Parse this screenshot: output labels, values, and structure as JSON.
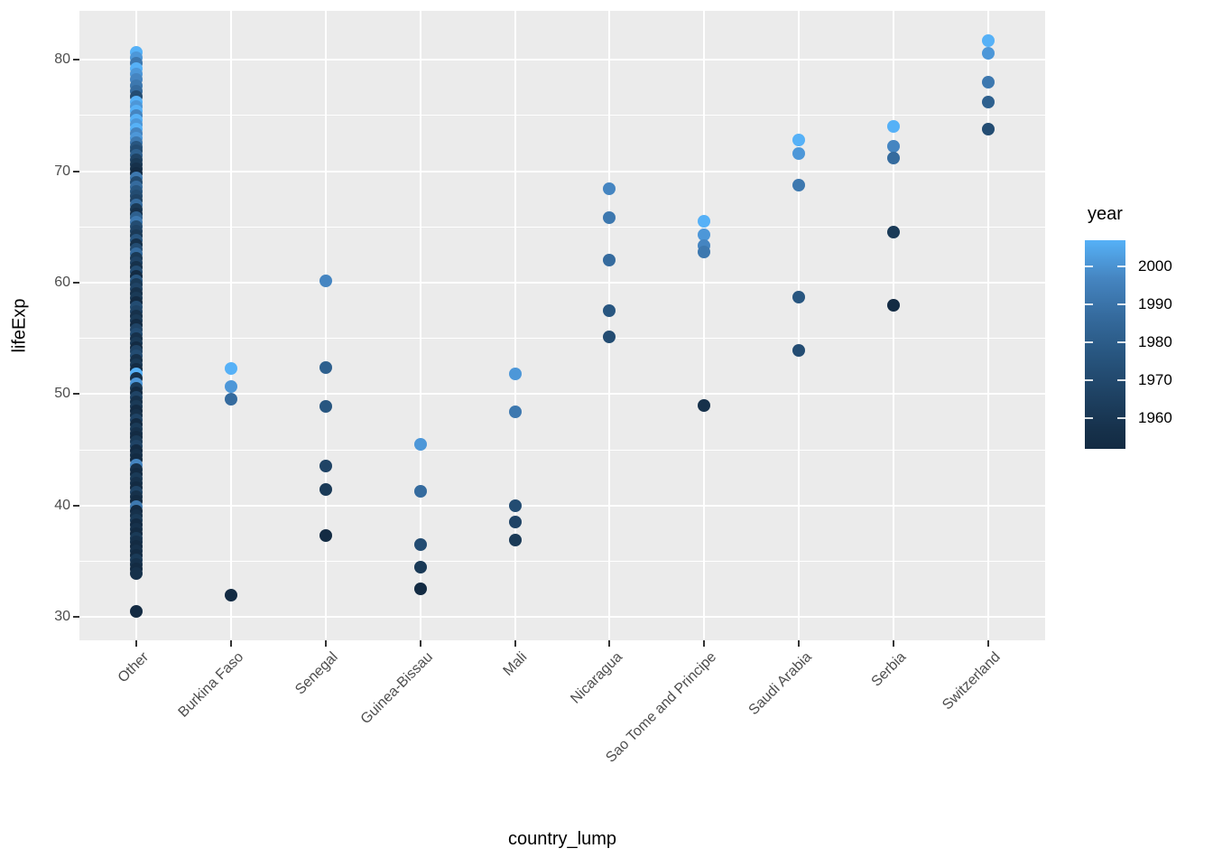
{
  "chart_data": {
    "type": "scatter",
    "title": "",
    "xlabel": "country_lump",
    "ylabel": "lifeExp",
    "x_categories": [
      "Other",
      "Burkina Faso",
      "Senegal",
      "Guinea-Bissau",
      "Mali",
      "Nicaragua",
      "Sao Tome and Principe",
      "Saudi Arabia",
      "Serbia",
      "Switzerland"
    ],
    "y_ticks": [
      30,
      40,
      50,
      60,
      70,
      80
    ],
    "y_minor_ticks": [
      35,
      45,
      55,
      65,
      75
    ],
    "ylim": [
      27.9,
      84.4
    ],
    "grid": "on",
    "colors": {
      "panel_background": "#EBEBEB",
      "gridline": "#FFFFFF",
      "tick_label": "#4D4D4D",
      "axis_title": "#000000",
      "gradient_low": "#132B43",
      "gradient_high": "#56B1F7"
    },
    "year_colors": {
      "1952": "#132b43",
      "1957": "#16314b",
      "1962": "#1a3a57",
      "1967": "#1f4365",
      "1972": "#234c72",
      "1977": "#285680",
      "1982": "#2e608e",
      "1987": "#356b9e",
      "1992": "#3d78af",
      "1997": "#4585c1",
      "2002": "#4d97d8",
      "2007": "#56b1f7"
    },
    "legend": {
      "title": "year",
      "position": "right",
      "min_year": 1952,
      "max_year": 2007,
      "tick_years": [
        2000,
        1990,
        1980,
        1970,
        1960
      ],
      "tick_labels": [
        "2000",
        "1990",
        "1980",
        "1970",
        "1960"
      ]
    },
    "series": [
      {
        "country": "Other",
        "points": [
          [
            80.7,
            2007
          ],
          [
            80.2,
            2002
          ],
          [
            79.7,
            1992
          ],
          [
            79.2,
            2007
          ],
          [
            78.7,
            2002
          ],
          [
            78.2,
            1997
          ],
          [
            77.7,
            1992
          ],
          [
            77.2,
            1987
          ],
          [
            76.7,
            1972
          ],
          [
            76.2,
            2007
          ],
          [
            75.8,
            2002
          ],
          [
            75.4,
            2007
          ],
          [
            75.0,
            1997
          ],
          [
            74.6,
            2007
          ],
          [
            74.2,
            2002
          ],
          [
            73.8,
            2007
          ],
          [
            73.4,
            1997
          ],
          [
            73.0,
            2002
          ],
          [
            72.6,
            1992
          ],
          [
            72.2,
            1977
          ],
          [
            71.8,
            1972
          ],
          [
            71.4,
            1982
          ],
          [
            71.0,
            1967
          ],
          [
            70.6,
            1962
          ],
          [
            70.2,
            1957
          ],
          [
            69.8,
            1952
          ],
          [
            69.4,
            1992
          ],
          [
            69.0,
            1972
          ],
          [
            68.6,
            1987
          ],
          [
            68.2,
            1977
          ],
          [
            67.8,
            1972
          ],
          [
            67.4,
            1967
          ],
          [
            67.0,
            1987
          ],
          [
            66.6,
            1962
          ],
          [
            66.2,
            1957
          ],
          [
            65.8,
            1982
          ],
          [
            65.4,
            1992
          ],
          [
            65.0,
            1972
          ],
          [
            64.6,
            1967
          ],
          [
            64.2,
            1962
          ],
          [
            63.8,
            1977
          ],
          [
            63.4,
            1957
          ],
          [
            63.0,
            1972
          ],
          [
            62.6,
            1987
          ],
          [
            62.2,
            1962
          ],
          [
            61.8,
            1967
          ],
          [
            61.4,
            1957
          ],
          [
            61.0,
            1972
          ],
          [
            60.6,
            1952
          ],
          [
            60.2,
            1977
          ],
          [
            59.8,
            1962
          ],
          [
            59.4,
            1967
          ],
          [
            59.0,
            1957
          ],
          [
            58.6,
            1962
          ],
          [
            58.2,
            1952
          ],
          [
            57.8,
            1972
          ],
          [
            57.4,
            1967
          ],
          [
            57.0,
            1957
          ],
          [
            56.6,
            1962
          ],
          [
            56.2,
            1952
          ],
          [
            55.8,
            1967
          ],
          [
            55.4,
            1972
          ],
          [
            55.0,
            1957
          ],
          [
            54.6,
            1962
          ],
          [
            54.2,
            1952
          ],
          [
            53.8,
            1967
          ],
          [
            53.4,
            1972
          ],
          [
            53.0,
            1957
          ],
          [
            52.6,
            1962
          ],
          [
            52.2,
            1952
          ],
          [
            51.8,
            2007
          ],
          [
            51.4,
            1957
          ],
          [
            50.9,
            2002
          ],
          [
            50.5,
            1962
          ],
          [
            50.1,
            1952
          ],
          [
            49.7,
            1967
          ],
          [
            49.3,
            1957
          ],
          [
            48.9,
            1962
          ],
          [
            48.5,
            1952
          ],
          [
            48.1,
            1957
          ],
          [
            47.7,
            1967
          ],
          [
            47.3,
            1952
          ],
          [
            46.9,
            1962
          ],
          [
            46.5,
            1957
          ],
          [
            46.1,
            1952
          ],
          [
            45.7,
            1962
          ],
          [
            45.3,
            1967
          ],
          [
            44.9,
            1952
          ],
          [
            44.5,
            1957
          ],
          [
            44.1,
            1952
          ],
          [
            43.6,
            1997
          ],
          [
            43.2,
            1957
          ],
          [
            42.8,
            1952
          ],
          [
            42.4,
            1962
          ],
          [
            42.0,
            1957
          ],
          [
            41.6,
            1952
          ],
          [
            41.2,
            1967
          ],
          [
            40.8,
            1957
          ],
          [
            40.4,
            1952
          ],
          [
            39.9,
            1992
          ],
          [
            39.5,
            1952
          ],
          [
            39.1,
            1957
          ],
          [
            38.7,
            1962
          ],
          [
            38.3,
            1952
          ],
          [
            37.9,
            1957
          ],
          [
            37.5,
            1952
          ],
          [
            37.1,
            1962
          ],
          [
            36.7,
            1957
          ],
          [
            36.3,
            1952
          ],
          [
            35.9,
            1957
          ],
          [
            35.5,
            1952
          ],
          [
            35.1,
            1962
          ],
          [
            34.7,
            1957
          ],
          [
            34.3,
            1952
          ],
          [
            33.9,
            1957
          ],
          [
            30.5,
            1952
          ]
        ]
      },
      {
        "country": "Burkina Faso",
        "points": [
          [
            52.295,
            2007
          ],
          [
            50.65,
            2002
          ],
          [
            49.557,
            1987
          ],
          [
            31.975,
            1952
          ]
        ]
      },
      {
        "country": "Senegal",
        "points": [
          [
            60.187,
            1997
          ],
          [
            52.379,
            1982
          ],
          [
            48.879,
            1977
          ],
          [
            43.563,
            1967
          ],
          [
            41.454,
            1962
          ],
          [
            37.278,
            1952
          ]
        ]
      },
      {
        "country": "Guinea-Bissau",
        "points": [
          [
            45.504,
            2002
          ],
          [
            41.245,
            1987
          ],
          [
            36.486,
            1972
          ],
          [
            34.488,
            1962
          ],
          [
            32.5,
            1952
          ]
        ]
      },
      {
        "country": "Mali",
        "points": [
          [
            51.818,
            2002
          ],
          [
            48.388,
            1992
          ],
          [
            39.977,
            1972
          ],
          [
            38.487,
            1967
          ],
          [
            36.936,
            1962
          ]
        ]
      },
      {
        "country": "Nicaragua",
        "points": [
          [
            68.426,
            1997
          ],
          [
            65.843,
            1992
          ],
          [
            62.008,
            1987
          ],
          [
            57.47,
            1977
          ],
          [
            55.151,
            1972
          ]
        ]
      },
      {
        "country": "Sao Tome and Principe",
        "points": [
          [
            65.528,
            2007
          ],
          [
            64.337,
            2002
          ],
          [
            63.306,
            1997
          ],
          [
            62.742,
            1992
          ],
          [
            48.945,
            1957
          ]
        ]
      },
      {
        "country": "Saudi Arabia",
        "points": [
          [
            72.777,
            2007
          ],
          [
            71.626,
            2002
          ],
          [
            68.768,
            1992
          ],
          [
            58.69,
            1977
          ],
          [
            53.886,
            1972
          ]
        ]
      },
      {
        "country": "Serbia",
        "points": [
          [
            74.002,
            2007
          ],
          [
            72.232,
            1997
          ],
          [
            71.218,
            1987
          ],
          [
            64.531,
            1962
          ],
          [
            57.996,
            1952
          ]
        ]
      },
      {
        "country": "Switzerland",
        "points": [
          [
            81.701,
            2007
          ],
          [
            80.62,
            2002
          ],
          [
            78.03,
            1992
          ],
          [
            76.21,
            1982
          ],
          [
            73.78,
            1972
          ]
        ]
      }
    ]
  }
}
